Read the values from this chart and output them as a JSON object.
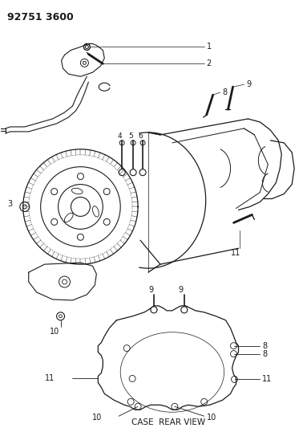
{
  "title": "92751 3600",
  "background_color": "#ffffff",
  "line_color": "#1a1a1a",
  "fig_width": 3.83,
  "fig_height": 5.33,
  "dpi": 100,
  "case_rear_view_label": "CASE  REAR VIEW"
}
